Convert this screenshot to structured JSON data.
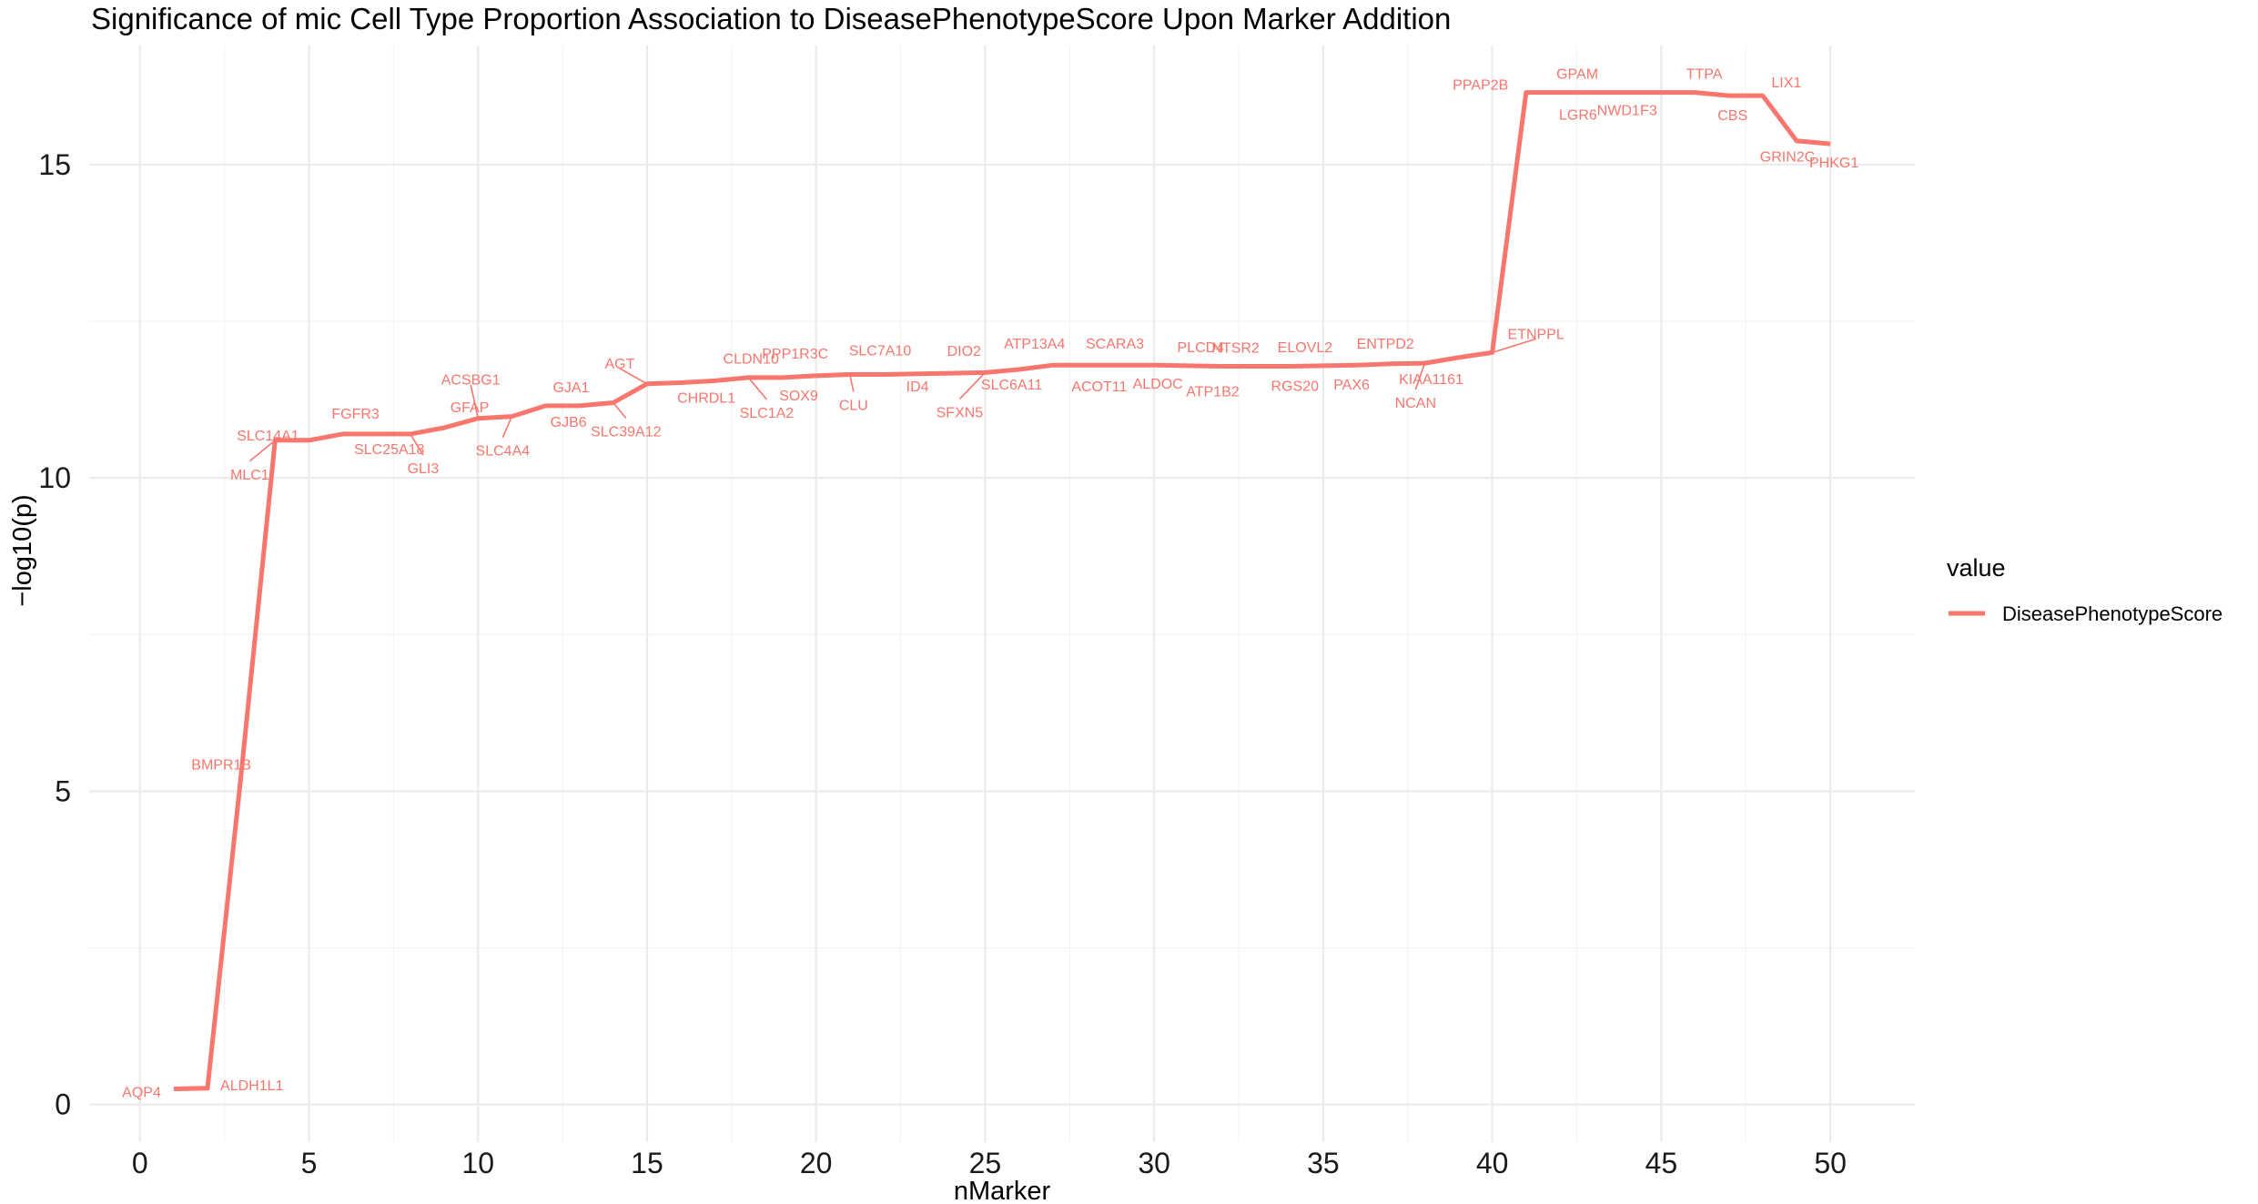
{
  "chart_data": {
    "type": "line",
    "title": "Significance of mic Cell Type Proportion Association to DiseasePhenotypeScore Upon Marker Addition",
    "xlabel": "nMarker",
    "ylabel": "−log10(p)",
    "xlim": [
      -1.5,
      52.5
    ],
    "ylim": [
      -0.6,
      16.9
    ],
    "x_ticks": [
      0,
      5,
      10,
      15,
      20,
      25,
      30,
      35,
      40,
      45,
      50
    ],
    "y_ticks": [
      0,
      5,
      10,
      15
    ],
    "x_tick_labels": [
      "0",
      "5",
      "10",
      "15",
      "20",
      "25",
      "30",
      "35",
      "40",
      "45",
      "50"
    ],
    "y_tick_labels": [
      "0",
      "5",
      "10",
      "15"
    ],
    "grid": true,
    "legend": {
      "title": "value",
      "position": "right",
      "entries": [
        "DiseasePhenotypeScore"
      ]
    },
    "series": [
      {
        "name": "DiseasePhenotypeScore",
        "color": "#f8766d",
        "x": [
          1,
          2,
          3,
          4,
          5,
          6,
          7,
          8,
          9,
          10,
          11,
          12,
          13,
          14,
          15,
          16,
          17,
          18,
          19,
          20,
          21,
          22,
          23,
          24,
          25,
          26,
          27,
          28,
          29,
          30,
          31,
          32,
          33,
          34,
          35,
          36,
          37,
          38,
          39,
          40,
          41,
          42,
          43,
          44,
          45,
          46,
          47,
          48,
          49,
          50
        ],
        "y": [
          0.25,
          0.26,
          5.3,
          10.6,
          10.6,
          10.7,
          10.7,
          10.7,
          10.8,
          10.95,
          10.98,
          11.15,
          11.15,
          11.2,
          11.5,
          11.52,
          11.55,
          11.6,
          11.6,
          11.63,
          11.65,
          11.65,
          11.66,
          11.67,
          11.68,
          11.73,
          11.8,
          11.8,
          11.8,
          11.8,
          11.79,
          11.78,
          11.78,
          11.78,
          11.79,
          11.8,
          11.82,
          11.83,
          11.92,
          12.0,
          16.15,
          16.15,
          16.15,
          16.15,
          16.15,
          16.15,
          16.1,
          16.1,
          15.38,
          15.33
        ],
        "labels": [
          "AQP4",
          "ALDH1L1",
          "BMPR1B",
          "MLC1",
          "SLC14A1",
          "FGFR3",
          "SLC25A18",
          "GLI3",
          "GFAP",
          "ACSBG1",
          "SLC4A4",
          "GJA1",
          "GJB6",
          "SLC39A12",
          "AGT",
          "CHRDL1",
          "CLDN10",
          "SLC1A2",
          "SOX9",
          "PPP1R3C",
          "CLU",
          "SLC7A10",
          "ID4",
          "DIO2",
          "SFXN5",
          "SLC6A11",
          "ATP13A4",
          "ACOT11",
          "SCARA3",
          "ALDOC",
          "PLCD4",
          "ATP1B2",
          "NTSR2",
          "RGS20",
          "ELOVL2",
          "PAX6",
          "ENTPD2",
          "NCAN",
          "KIAA1161",
          "ETNPPL",
          "PPAP2B",
          "LGR6",
          "GPAM",
          "NWD1",
          "F3",
          "TTPA",
          "CBS",
          "LIX1",
          "GRIN2C",
          "PHKG1"
        ]
      }
    ]
  }
}
